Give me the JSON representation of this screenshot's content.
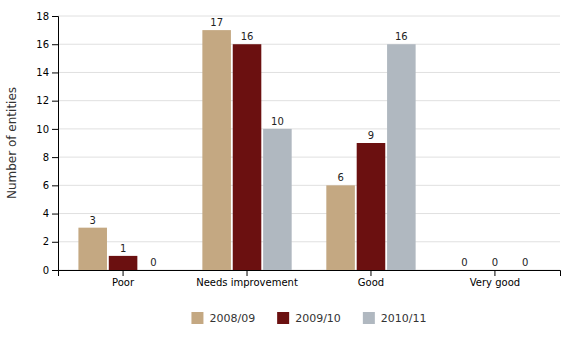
{
  "chart_data": {
    "type": "bar",
    "categories": [
      "Poor",
      "Needs improvement",
      "Good",
      "Very good"
    ],
    "series": [
      {
        "name": "2008/09",
        "color": "#C4A882",
        "values": [
          3,
          17,
          6,
          0
        ]
      },
      {
        "name": "2009/10",
        "color": "#6B1010",
        "values": [
          1,
          16,
          9,
          0
        ]
      },
      {
        "name": "2010/11",
        "color": "#B0B8C0",
        "values": [
          0,
          10,
          16,
          0
        ]
      }
    ],
    "ylabel": "Number of entities",
    "ylim": [
      0,
      18
    ],
    "yticks": [
      0,
      2,
      4,
      6,
      8,
      10,
      12,
      14,
      16,
      18
    ],
    "grid": true,
    "legend": "bottom",
    "data_labels": true
  }
}
